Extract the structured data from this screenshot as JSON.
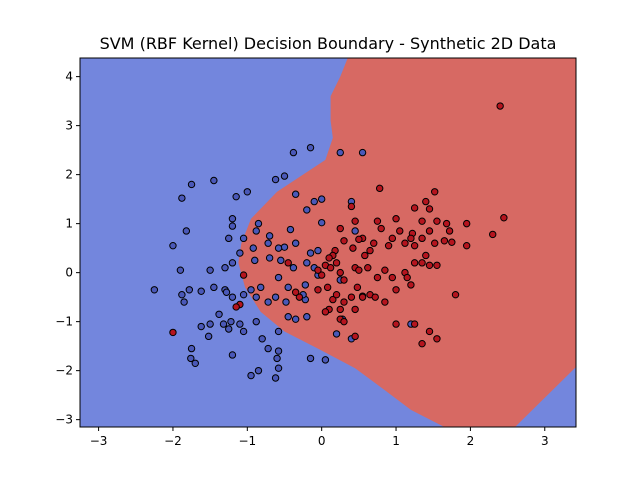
{
  "chart_data": {
    "type": "scatter",
    "title": "SVM (RBF Kernel) Decision Boundary - Synthetic 2D Data",
    "xlabel": "",
    "ylabel": "",
    "xlim": [
      -3.25,
      3.42
    ],
    "ylim": [
      -3.15,
      4.38
    ],
    "x_ticks": [
      -3,
      -2,
      -1,
      0,
      1,
      2,
      3
    ],
    "y_ticks": [
      -3,
      -2,
      -1,
      0,
      1,
      2,
      3,
      4
    ],
    "grid": false,
    "legend": "none",
    "regions": [
      {
        "label": "class 0",
        "color": "#7386dd"
      },
      {
        "label": "class 1",
        "color": "#d76963"
      }
    ],
    "decision_boundary": [
      [
        0.35,
        4.38
      ],
      [
        0.25,
        4.0
      ],
      [
        0.12,
        3.6
      ],
      [
        0.12,
        3.1
      ],
      [
        0.15,
        2.75
      ],
      [
        0.05,
        2.3
      ],
      [
        -0.35,
        1.9
      ],
      [
        -0.6,
        1.65
      ],
      [
        -0.95,
        1.1
      ],
      [
        -1.08,
        0.6
      ],
      [
        -1.12,
        0.2
      ],
      [
        -1.03,
        -0.3
      ],
      [
        -0.82,
        -0.8
      ],
      [
        -0.5,
        -1.2
      ],
      [
        -0.05,
        -1.55
      ],
      [
        0.45,
        -1.95
      ],
      [
        0.85,
        -2.4
      ],
      [
        1.2,
        -2.8
      ],
      [
        1.65,
        -3.15
      ]
    ],
    "boundary_closure_x_ranges": [
      [
        2.6,
        3.42
      ]
    ],
    "point_colors": {
      "class0": "#4a58b8",
      "class1": "#b5141e"
    },
    "series": [
      {
        "class": 0,
        "points": [
          [
            -2.25,
            -0.35
          ],
          [
            -2.0,
            0.55
          ],
          [
            -1.9,
            0.05
          ],
          [
            -1.82,
            0.85
          ],
          [
            -1.75,
            1.8
          ],
          [
            -1.88,
            1.52
          ],
          [
            -1.45,
            1.88
          ],
          [
            -1.15,
            1.55
          ],
          [
            -1.0,
            1.65
          ],
          [
            -0.62,
            1.9
          ],
          [
            -0.5,
            1.97
          ],
          [
            -0.38,
            2.45
          ],
          [
            -0.15,
            2.55
          ],
          [
            -0.35,
            1.6
          ],
          [
            -0.2,
            1.28
          ],
          [
            -0.1,
            1.45
          ],
          [
            0.0,
            1.5
          ],
          [
            0.0,
            1.02
          ],
          [
            -0.5,
            0.52
          ],
          [
            -0.85,
            1.0
          ],
          [
            -1.2,
            1.1
          ],
          [
            -1.2,
            0.95
          ],
          [
            -1.25,
            0.7
          ],
          [
            -1.05,
            0.7
          ],
          [
            -0.88,
            0.85
          ],
          [
            -0.7,
            0.75
          ],
          [
            -0.72,
            0.6
          ],
          [
            -0.58,
            0.5
          ],
          [
            -0.42,
            0.88
          ],
          [
            -0.35,
            0.6
          ],
          [
            -0.15,
            0.4
          ],
          [
            -0.05,
            0.45
          ],
          [
            -0.55,
            0.25
          ],
          [
            -0.7,
            0.3
          ],
          [
            -0.9,
            0.25
          ],
          [
            -0.92,
            0.5
          ],
          [
            -1.1,
            0.4
          ],
          [
            -1.2,
            0.2
          ],
          [
            -1.3,
            0.1
          ],
          [
            -1.5,
            0.05
          ],
          [
            -1.78,
            -0.35
          ],
          [
            -1.88,
            -0.45
          ],
          [
            -1.85,
            -0.6
          ],
          [
            -1.62,
            -0.38
          ],
          [
            -1.45,
            -0.3
          ],
          [
            -1.3,
            -0.35
          ],
          [
            -1.2,
            -0.5
          ],
          [
            -0.95,
            -0.35
          ],
          [
            -0.82,
            -0.3
          ],
          [
            -0.58,
            -0.1
          ],
          [
            -0.45,
            -0.3
          ],
          [
            -0.38,
            0.1
          ],
          [
            -0.2,
            0.2
          ],
          [
            -0.1,
            0.1
          ],
          [
            -0.05,
            -0.05
          ],
          [
            -0.22,
            -0.25
          ],
          [
            -0.22,
            -0.55
          ],
          [
            -0.48,
            -0.6
          ],
          [
            -0.62,
            -0.5
          ],
          [
            -0.72,
            -0.6
          ],
          [
            -0.88,
            -0.5
          ],
          [
            -1.05,
            -0.45
          ],
          [
            -1.28,
            -0.4
          ],
          [
            -1.38,
            -0.85
          ],
          [
            -1.32,
            -1.05
          ],
          [
            -1.5,
            -1.05
          ],
          [
            -1.52,
            -1.3
          ],
          [
            -1.62,
            -1.1
          ],
          [
            -1.75,
            -1.55
          ],
          [
            -1.76,
            -1.75
          ],
          [
            -1.7,
            -1.85
          ],
          [
            -1.2,
            -1.68
          ],
          [
            -1.25,
            -1.15
          ],
          [
            -1.22,
            -1.0
          ],
          [
            -1.1,
            -1.05
          ],
          [
            -1.05,
            -1.2
          ],
          [
            -0.88,
            -1.0
          ],
          [
            -0.8,
            -1.35
          ],
          [
            -0.72,
            -1.55
          ],
          [
            -0.58,
            -1.6
          ],
          [
            -0.6,
            -1.75
          ],
          [
            -0.58,
            -1.95
          ],
          [
            -0.62,
            -2.15
          ],
          [
            -0.85,
            -2.0
          ],
          [
            -0.95,
            -2.1
          ],
          [
            -0.58,
            -1.2
          ],
          [
            -0.35,
            -0.95
          ],
          [
            -0.45,
            -0.9
          ],
          [
            -0.2,
            -0.9
          ],
          [
            -0.25,
            -0.45
          ],
          [
            -0.15,
            -1.75
          ],
          [
            0.05,
            -1.78
          ],
          [
            0.4,
            -1.35
          ],
          [
            0.2,
            -1.25
          ],
          [
            0.28,
            -0.95
          ],
          [
            0.25,
            -0.15
          ],
          [
            0.45,
            0.85
          ],
          [
            0.4,
            1.45
          ],
          [
            0.25,
            2.45
          ],
          [
            0.55,
            2.45
          ],
          [
            1.2,
            -1.05
          ]
        ]
      },
      {
        "class": 1,
        "points": [
          [
            2.4,
            3.4
          ],
          [
            2.45,
            1.12
          ],
          [
            2.3,
            0.78
          ],
          [
            1.95,
            0.55
          ],
          [
            1.95,
            1.0
          ],
          [
            1.75,
            0.62
          ],
          [
            1.68,
            1.0
          ],
          [
            1.55,
            1.05
          ],
          [
            1.45,
            1.3
          ],
          [
            1.4,
            1.45
          ],
          [
            1.52,
            1.65
          ],
          [
            1.35,
            1.05
          ],
          [
            1.45,
            0.85
          ],
          [
            1.35,
            0.7
          ],
          [
            1.25,
            1.32
          ],
          [
            1.22,
            0.8
          ],
          [
            1.2,
            0.7
          ],
          [
            1.25,
            0.55
          ],
          [
            1.12,
            0.6
          ],
          [
            1.05,
            0.85
          ],
          [
            1.0,
            1.1
          ],
          [
            0.95,
            0.7
          ],
          [
            0.9,
            0.55
          ],
          [
            0.8,
            0.9
          ],
          [
            0.75,
            1.05
          ],
          [
            0.78,
            1.72
          ],
          [
            0.7,
            0.6
          ],
          [
            0.65,
            0.45
          ],
          [
            0.58,
            0.35
          ],
          [
            0.55,
            0.7
          ],
          [
            0.5,
            0.68
          ],
          [
            0.42,
            0.5
          ],
          [
            0.4,
            1.35
          ],
          [
            0.45,
            1.05
          ],
          [
            0.3,
            0.65
          ],
          [
            0.25,
            0.9
          ],
          [
            0.18,
            0.45
          ],
          [
            0.15,
            0.35
          ],
          [
            0.1,
            0.3
          ],
          [
            0.05,
            0.15
          ],
          [
            0.0,
            -0.05
          ],
          [
            -0.05,
            0.05
          ],
          [
            0.08,
            -0.3
          ],
          [
            -0.05,
            -0.35
          ],
          [
            0.12,
            0.1
          ],
          [
            0.2,
            0.2
          ],
          [
            0.25,
            0.0
          ],
          [
            0.3,
            -0.15
          ],
          [
            0.45,
            0.1
          ],
          [
            0.5,
            0.05
          ],
          [
            0.62,
            0.1
          ],
          [
            0.75,
            -0.1
          ],
          [
            0.85,
            0.05
          ],
          [
            0.95,
            -0.1
          ],
          [
            1.0,
            -0.35
          ],
          [
            1.12,
            0.0
          ],
          [
            1.15,
            -0.1
          ],
          [
            1.2,
            -0.25
          ],
          [
            1.25,
            0.2
          ],
          [
            1.35,
            0.2
          ],
          [
            1.4,
            0.35
          ],
          [
            1.45,
            0.15
          ],
          [
            1.55,
            0.15
          ],
          [
            1.52,
            0.6
          ],
          [
            1.65,
            0.65
          ],
          [
            1.72,
            0.85
          ],
          [
            1.8,
            -0.45
          ],
          [
            1.45,
            -1.2
          ],
          [
            1.35,
            -1.45
          ],
          [
            1.55,
            -1.35
          ],
          [
            1.25,
            -1.05
          ],
          [
            1.0,
            -1.05
          ],
          [
            0.85,
            -0.6
          ],
          [
            0.65,
            -0.45
          ],
          [
            0.55,
            -0.48
          ],
          [
            0.48,
            -0.3
          ],
          [
            0.4,
            -0.5
          ],
          [
            0.45,
            -0.75
          ],
          [
            0.3,
            -0.6
          ],
          [
            0.25,
            -0.75
          ],
          [
            0.25,
            -0.95
          ],
          [
            0.15,
            -0.55
          ],
          [
            0.1,
            -0.75
          ],
          [
            0.05,
            -0.8
          ],
          [
            -0.3,
            -0.5
          ],
          [
            -0.35,
            -0.4
          ],
          [
            -0.45,
            0.2
          ],
          [
            -1.1,
            -0.65
          ],
          [
            -1.15,
            -0.7
          ],
          [
            -1.05,
            -0.05
          ],
          [
            -2.0,
            -1.22
          ],
          [
            0.45,
            -1.3
          ],
          [
            0.3,
            -1.0
          ],
          [
            0.2,
            -0.45
          ],
          [
            0.72,
            -0.5
          ],
          [
            0.55,
            -0.5
          ]
        ]
      }
    ]
  }
}
